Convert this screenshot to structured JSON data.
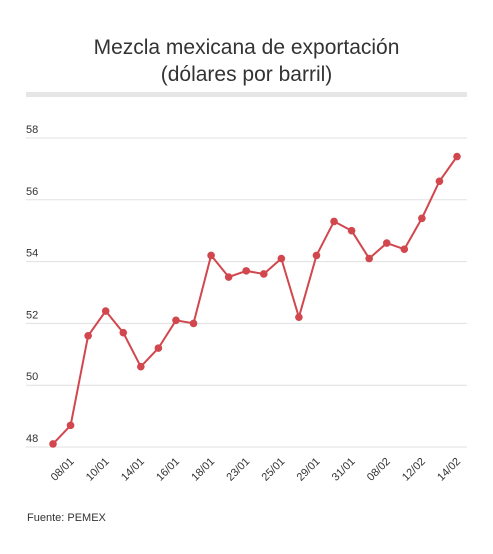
{
  "title_line1": "Mezcla mexicana de exportación",
  "title_line2": "(dólares por barril)",
  "source": "Fuente: PEMEX",
  "colors": {
    "line": "#d1474d",
    "grid": "#e0e0e0",
    "axis_text": "#333333"
  },
  "chart_data": {
    "type": "line",
    "title": "Mezcla mexicana de exportación (dólares por barril)",
    "xlabel": "",
    "ylabel": "",
    "ylim": [
      48,
      58
    ],
    "yticks": [
      48,
      50,
      52,
      54,
      56,
      58
    ],
    "grid": true,
    "x_tick_labels": [
      "08/01",
      "10/01",
      "14/01",
      "16/01",
      "18/01",
      "23/01",
      "25/01",
      "29/01",
      "31/01",
      "08/02",
      "12/02",
      "14/02"
    ],
    "x_tick_every": 2,
    "x_tick_offset": 1,
    "series": [
      {
        "values": [
          48.1,
          48.7,
          51.6,
          52.4,
          51.7,
          50.6,
          51.2,
          52.1,
          52.0,
          54.2,
          53.5,
          53.7,
          53.6,
          54.1,
          52.2,
          54.2,
          55.3,
          55.0,
          54.1,
          54.6,
          54.4,
          55.4,
          56.6,
          57.4
        ]
      }
    ]
  }
}
